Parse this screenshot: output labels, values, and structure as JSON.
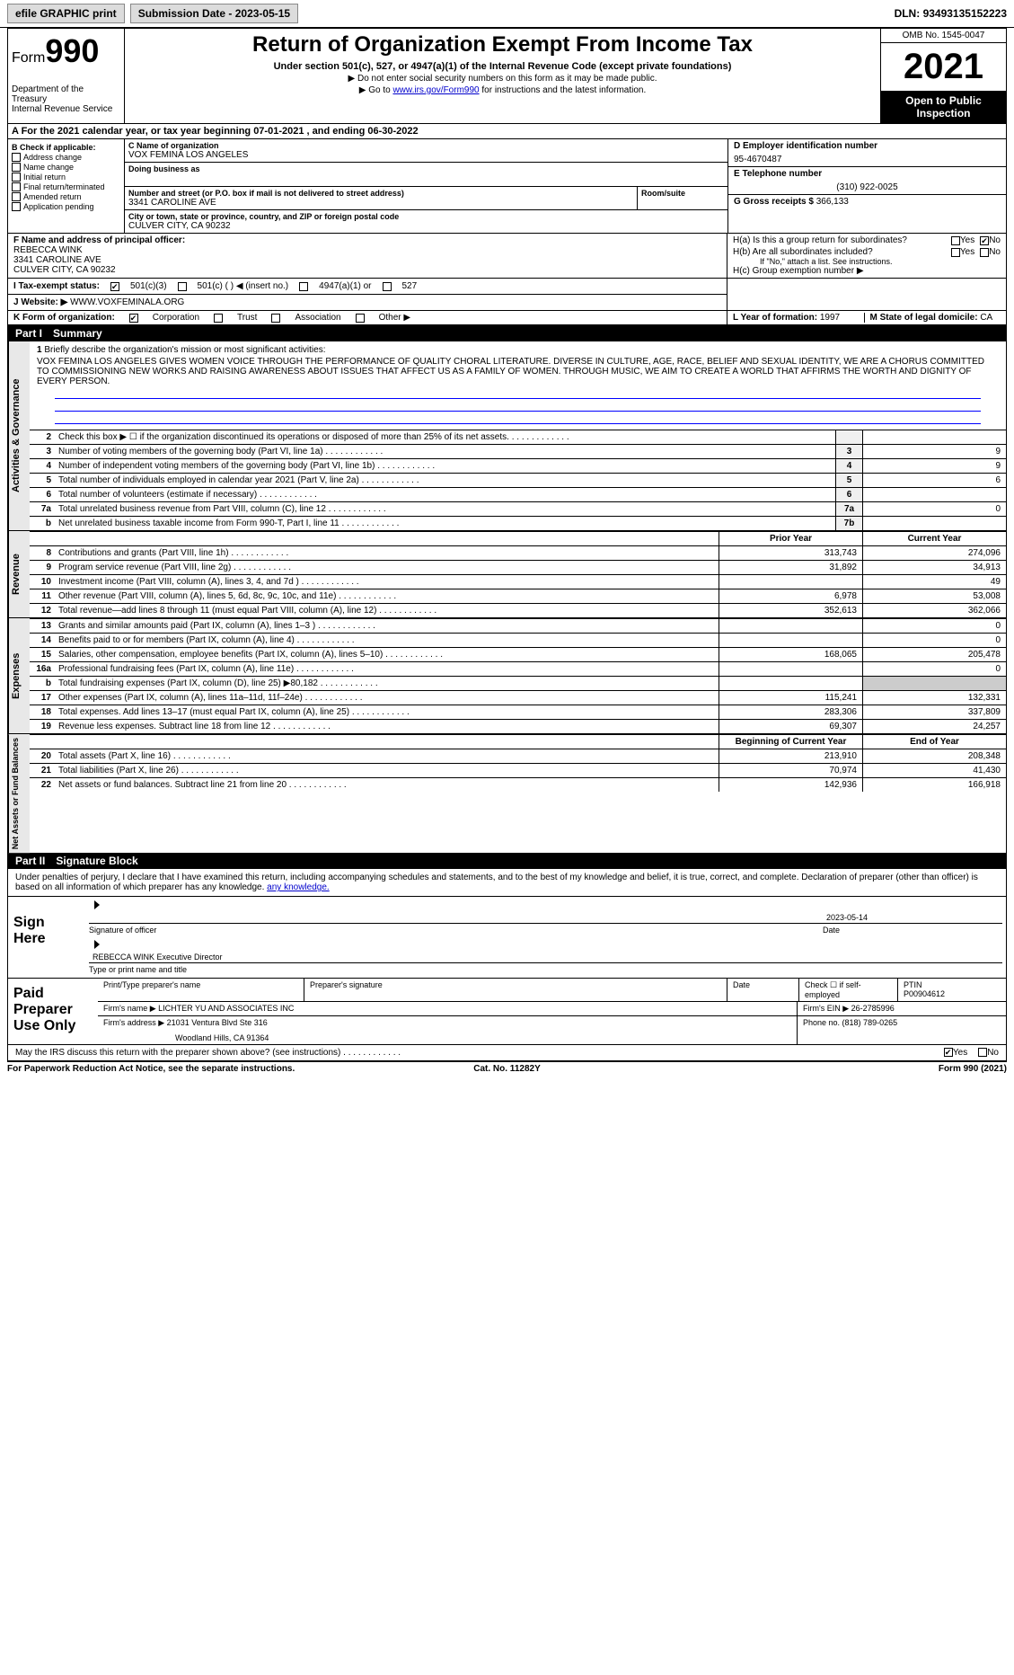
{
  "topbar": {
    "efile": "efile GRAPHIC print",
    "submission_label": "Submission Date - ",
    "submission_date": "2023-05-15",
    "dln_label": "DLN: ",
    "dln": "93493135152223"
  },
  "header": {
    "form_prefix": "Form",
    "form_number": "990",
    "dept": "Department of the Treasury\nInternal Revenue Service",
    "title": "Return of Organization Exempt From Income Tax",
    "sub": "Under section 501(c), 527, or 4947(a)(1) of the Internal Revenue Code (except private foundations)",
    "note1": "▶ Do not enter social security numbers on this form as it may be made public.",
    "note2_pre": "▶ Go to ",
    "note2_link": "www.irs.gov/Form990",
    "note2_post": " for instructions and the latest information.",
    "omb": "OMB No. 1545-0047",
    "year": "2021",
    "open": "Open to Public Inspection"
  },
  "row_a": "A  For the 2021 calendar year, or tax year beginning 07-01-2021    , and ending 06-30-2022",
  "col_b": {
    "label": "B Check if applicable:",
    "items": [
      "Address change",
      "Name change",
      "Initial return",
      "Final return/terminated",
      "Amended return",
      "Application pending"
    ]
  },
  "col_c": {
    "name_label": "C Name of organization",
    "name": "VOX FEMINA LOS ANGELES",
    "dba_label": "Doing business as",
    "dba": "",
    "street_label": "Number and street (or P.O. box if mail is not delivered to street address)",
    "street": "3341 CAROLINE AVE",
    "room_label": "Room/suite",
    "city_label": "City or town, state or province, country, and ZIP or foreign postal code",
    "city": "CULVER CITY, CA  90232"
  },
  "col_d": {
    "ein_label": "D Employer identification number",
    "ein": "95-4670487",
    "phone_label": "E Telephone number",
    "phone": "(310) 922-0025",
    "gross_label": "G Gross receipts $ ",
    "gross": "366,133"
  },
  "section_f": {
    "label": "F  Name and address of principal officer:",
    "name": "REBECCA WINK",
    "street": "3341 CAROLINE AVE",
    "city": "CULVER CITY, CA  90232"
  },
  "section_h": {
    "ha": "H(a)  Is this a group return for subordinates?",
    "hb": "H(b)  Are all subordinates included?",
    "hb_note": "If \"No,\" attach a list. See instructions.",
    "hc": "H(c)  Group exemption number ▶",
    "yes": "Yes",
    "no": "No"
  },
  "tax_status": {
    "label": "I    Tax-exempt status:",
    "c3": "501(c)(3)",
    "c": "501(c) (  ) ◀ (insert no.)",
    "a1": "4947(a)(1) or",
    "527": "527"
  },
  "website": {
    "label": "J   Website: ▶",
    "url": "WWW.VOXFEMINALA.ORG"
  },
  "korg": {
    "label": "K Form of organization:",
    "corp": "Corporation",
    "trust": "Trust",
    "assoc": "Association",
    "other": "Other ▶"
  },
  "lform": {
    "year_label": "L Year of formation: ",
    "year": "1997",
    "state_label": "M State of legal domicile: ",
    "state": "CA"
  },
  "part1": {
    "num": "Part I",
    "title": "Summary"
  },
  "mission": {
    "num": "1",
    "label": "Briefly describe the organization's mission or most significant activities:",
    "text": "VOX FEMINA LOS ANGELES GIVES WOMEN VOICE THROUGH THE PERFORMANCE OF QUALITY CHORAL LITERATURE. DIVERSE IN CULTURE, AGE, RACE, BELIEF AND SEXUAL IDENTITY, WE ARE A CHORUS COMMITTED TO COMMISSIONING NEW WORKS AND RAISING AWARENESS ABOUT ISSUES THAT AFFECT US AS A FAMILY OF WOMEN. THROUGH MUSIC, WE AIM TO CREATE A WORLD THAT AFFIRMS THE WORTH AND DIGNITY OF EVERY PERSON."
  },
  "gov_rows": [
    {
      "n": "2",
      "desc": "Check this box ▶ ☐  if the organization discontinued its operations or disposed of more than 25% of its net assets.",
      "box": "",
      "val": ""
    },
    {
      "n": "3",
      "desc": "Number of voting members of the governing body (Part VI, line 1a)",
      "box": "3",
      "val": "9"
    },
    {
      "n": "4",
      "desc": "Number of independent voting members of the governing body (Part VI, line 1b)",
      "box": "4",
      "val": "9"
    },
    {
      "n": "5",
      "desc": "Total number of individuals employed in calendar year 2021 (Part V, line 2a)",
      "box": "5",
      "val": "6"
    },
    {
      "n": "6",
      "desc": "Total number of volunteers (estimate if necessary)",
      "box": "6",
      "val": ""
    },
    {
      "n": "7a",
      "desc": "Total unrelated business revenue from Part VIII, column (C), line 12",
      "box": "7a",
      "val": "0"
    },
    {
      "n": "b",
      "desc": "Net unrelated business taxable income from Form 990-T, Part I, line 11",
      "box": "7b",
      "val": ""
    }
  ],
  "vtab_gov": "Activities & Governance",
  "vtab_rev": "Revenue",
  "vtab_exp": "Expenses",
  "vtab_net": "Net Assets or Fund Balances",
  "colheads": {
    "prior": "Prior Year",
    "current": "Current Year"
  },
  "revenue_rows": [
    {
      "n": "8",
      "desc": "Contributions and grants (Part VIII, line 1h)",
      "p": "313,743",
      "c": "274,096"
    },
    {
      "n": "9",
      "desc": "Program service revenue (Part VIII, line 2g)",
      "p": "31,892",
      "c": "34,913"
    },
    {
      "n": "10",
      "desc": "Investment income (Part VIII, column (A), lines 3, 4, and 7d )",
      "p": "",
      "c": "49"
    },
    {
      "n": "11",
      "desc": "Other revenue (Part VIII, column (A), lines 5, 6d, 8c, 9c, 10c, and 11e)",
      "p": "6,978",
      "c": "53,008"
    },
    {
      "n": "12",
      "desc": "Total revenue—add lines 8 through 11 (must equal Part VIII, column (A), line 12)",
      "p": "352,613",
      "c": "362,066"
    }
  ],
  "expense_rows": [
    {
      "n": "13",
      "desc": "Grants and similar amounts paid (Part IX, column (A), lines 1–3 )",
      "p": "",
      "c": "0"
    },
    {
      "n": "14",
      "desc": "Benefits paid to or for members (Part IX, column (A), line 4)",
      "p": "",
      "c": "0"
    },
    {
      "n": "15",
      "desc": "Salaries, other compensation, employee benefits (Part IX, column (A), lines 5–10)",
      "p": "168,065",
      "c": "205,478"
    },
    {
      "n": "16a",
      "desc": "Professional fundraising fees (Part IX, column (A), line 11e)",
      "p": "",
      "c": "0"
    },
    {
      "n": "b",
      "desc": "Total fundraising expenses (Part IX, column (D), line 25) ▶80,182",
      "p": "",
      "c": "",
      "shaded": true
    },
    {
      "n": "17",
      "desc": "Other expenses (Part IX, column (A), lines 11a–11d, 11f–24e)",
      "p": "115,241",
      "c": "132,331"
    },
    {
      "n": "18",
      "desc": "Total expenses. Add lines 13–17 (must equal Part IX, column (A), line 25)",
      "p": "283,306",
      "c": "337,809"
    },
    {
      "n": "19",
      "desc": "Revenue less expenses. Subtract line 18 from line 12",
      "p": "69,307",
      "c": "24,257"
    }
  ],
  "colheads2": {
    "begin": "Beginning of Current Year",
    "end": "End of Year"
  },
  "net_rows": [
    {
      "n": "20",
      "desc": "Total assets (Part X, line 16)",
      "p": "213,910",
      "c": "208,348"
    },
    {
      "n": "21",
      "desc": "Total liabilities (Part X, line 26)",
      "p": "70,974",
      "c": "41,430"
    },
    {
      "n": "22",
      "desc": "Net assets or fund balances. Subtract line 21 from line 20",
      "p": "142,936",
      "c": "166,918"
    }
  ],
  "part2": {
    "num": "Part II",
    "title": "Signature Block"
  },
  "sig_text": "Under penalties of perjury, I declare that I have examined this return, including accompanying schedules and statements, and to the best of my knowledge and belief, it is true, correct, and complete. Declaration of preparer (other than officer) is based on all information of which preparer has any knowledge.",
  "sign": {
    "label": "Sign Here",
    "sig_officer": "Signature of officer",
    "date": "2023-05-14",
    "date_label": "Date",
    "name": "REBECCA WINK  Executive Director",
    "name_label": "Type or print name and title"
  },
  "prep": {
    "label": "Paid Preparer Use Only",
    "h1": "Print/Type preparer's name",
    "h2": "Preparer's signature",
    "h3": "Date",
    "h4_pre": "Check ☐ if self-employed",
    "h5_label": "PTIN",
    "h5": "P00904612",
    "firm_label": "Firm's name    ▶",
    "firm": "LICHTER YU AND ASSOCIATES INC",
    "ein_label": "Firm's EIN ▶",
    "ein": "26-2785996",
    "addr_label": "Firm's address ▶",
    "addr1": "21031 Ventura Blvd Ste 316",
    "addr2": "Woodland Hills, CA  91364",
    "phone_label": "Phone no. ",
    "phone": "(818) 789-0265"
  },
  "discuss": {
    "q": "May the IRS discuss this return with the preparer shown above? (see instructions)",
    "yes": "Yes",
    "no": "No"
  },
  "footer": {
    "l": "For Paperwork Reduction Act Notice, see the separate instructions.",
    "c": "Cat. No. 11282Y",
    "r": "Form 990 (2021)"
  }
}
